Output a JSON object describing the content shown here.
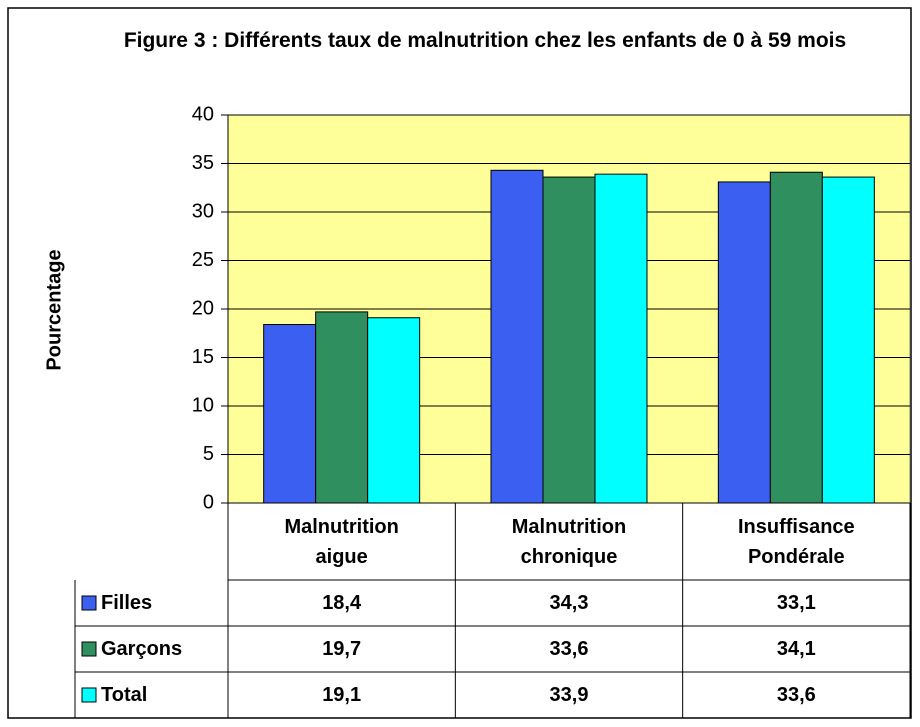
{
  "chart_data": {
    "type": "bar",
    "title": "Figure 3 : Différents taux de malnutrition chez les enfants de 0 à 59 mois",
    "y_label": "Pourcentage",
    "categories": [
      "Malnutrition aigue",
      "Malnutrition chronique",
      "Insuffisance Pondérale"
    ],
    "series": [
      {
        "name": "Filles",
        "color": "#3b5ff0",
        "values": [
          18.4,
          34.3,
          33.1
        ],
        "value_labels": [
          "18,4",
          "34,3",
          "33,1"
        ]
      },
      {
        "name": "Garçons",
        "color": "#2f8f5f",
        "values": [
          19.7,
          33.6,
          34.1
        ],
        "value_labels": [
          "19,7",
          "33,6",
          "34,1"
        ]
      },
      {
        "name": "Total",
        "color": "#00ffff",
        "values": [
          19.1,
          33.9,
          33.6
        ],
        "value_labels": [
          "19,1",
          "33,9",
          "33,6"
        ]
      }
    ],
    "ylim": [
      0,
      40
    ],
    "yticks": [
      0,
      5,
      10,
      15,
      20,
      25,
      30,
      35,
      40
    ],
    "grid": true,
    "plot_background": "#ffff99",
    "data_table": true
  }
}
